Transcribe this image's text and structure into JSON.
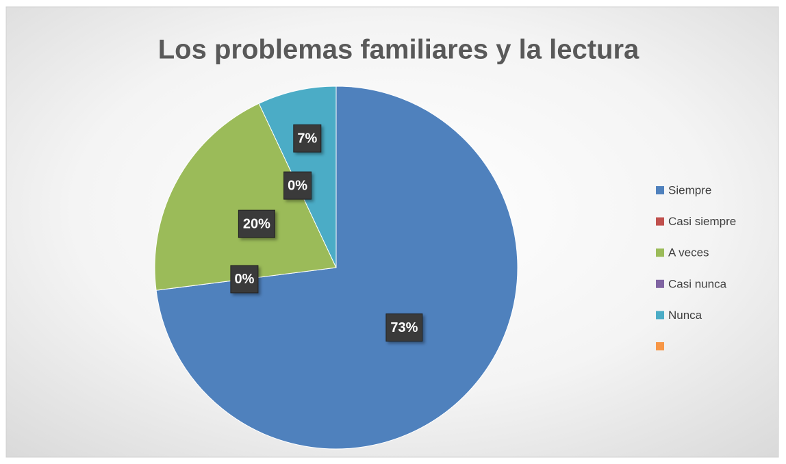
{
  "chart_data": {
    "type": "pie",
    "title": "Los problemas familiares y la lectura",
    "categories": [
      "Siempre",
      "Casi siempre",
      "A veces",
      "Casi nunca",
      "Nunca",
      null
    ],
    "values": [
      73,
      0,
      20,
      0,
      7,
      0
    ],
    "value_labels": [
      "73%",
      "0%",
      "20%",
      "0%",
      "7%",
      null
    ],
    "colors": [
      "#4f81bd",
      "#c0504d",
      "#9bbb59",
      "#8064a2",
      "#4bacc6",
      "#f79646"
    ],
    "legend": "right"
  }
}
